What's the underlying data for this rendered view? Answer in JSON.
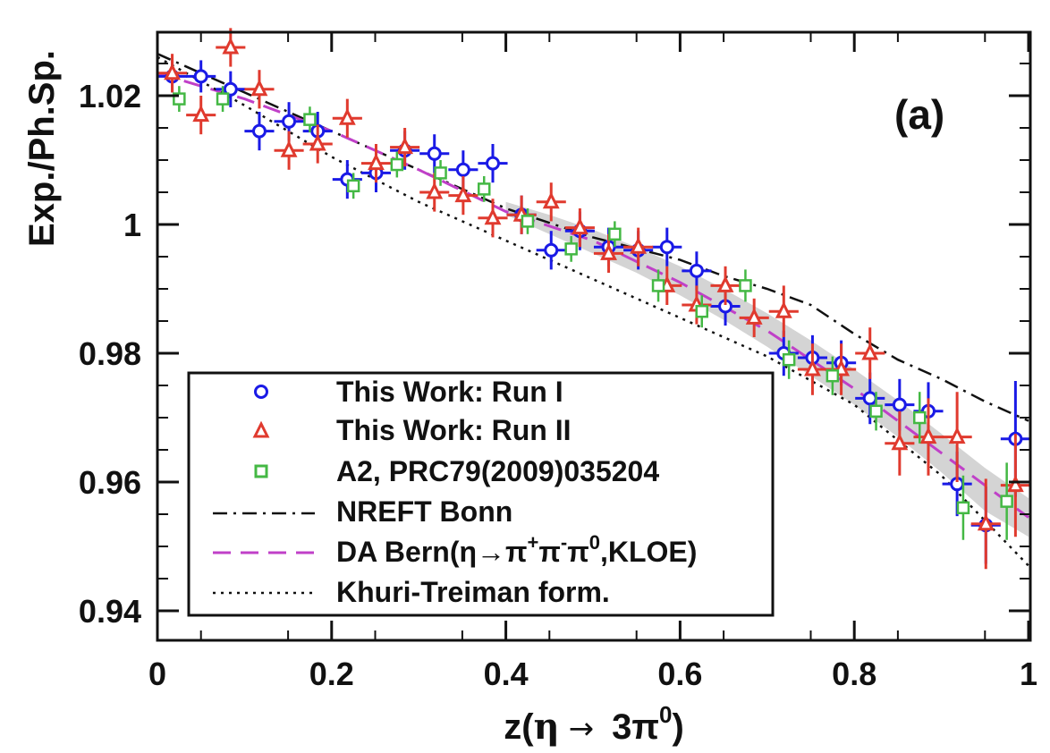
{
  "chart_data": {
    "type": "scatter",
    "panel_label": "(a)",
    "xlabel": "z(η → 3π⁰)",
    "xlabel_parts": {
      "prefix": "z(",
      "eta": "η",
      "arrow": "→",
      "three_pi": "3π",
      "sup": "0",
      "suffix": ")"
    },
    "ylabel": "Exp./Ph.Sp.",
    "xlim": [
      0,
      1
    ],
    "ylim": [
      0.935,
      1.03
    ],
    "x_ticks": [
      0,
      0.2,
      0.4,
      0.6,
      0.8,
      1
    ],
    "x_tick_labels": [
      "0",
      "0.2",
      "0.4",
      "0.6",
      "0.8",
      "1"
    ],
    "y_ticks": [
      0.94,
      0.96,
      0.98,
      1,
      1.02
    ],
    "y_tick_labels": [
      "0.94",
      "0.96",
      "0.98",
      "1",
      "1.02"
    ],
    "legend_position": "bottom-left",
    "legend": [
      {
        "label": "This Work: Run I",
        "marker": "circle",
        "color": "#1a1ae6"
      },
      {
        "label": "This Work: Run II",
        "marker": "triangle",
        "color": "#e03a2e"
      },
      {
        "label": "A2, PRC79(2009)035204",
        "marker": "square",
        "color": "#44b844"
      },
      {
        "label": "NREFT Bonn",
        "line": "dashdot",
        "color": "#111111"
      },
      {
        "label": "DA Bern(η→π⁺π⁻π⁰,KLOE)",
        "label_parts": {
          "prefix": "DA Bern(η→π",
          "s1": "+",
          "mid1": "π",
          "s2": "-",
          "mid2": "π",
          "s3": "0",
          "suffix": ",KLOE)"
        },
        "line": "dashed",
        "color": "#c040c8"
      },
      {
        "label": "Khuri-Treiman form.",
        "line": "dotted",
        "color": "#111111"
      }
    ],
    "band": {
      "color": "#cfcfcf",
      "x": [
        0.4,
        0.45,
        0.5,
        0.55,
        0.6,
        0.65,
        0.7,
        0.75,
        0.8,
        0.85,
        0.9,
        0.95,
        1.0
      ],
      "low": [
        1.0015,
        0.9985,
        0.9955,
        0.9925,
        0.989,
        0.9852,
        0.981,
        0.9765,
        0.972,
        0.967,
        0.9615,
        0.9555,
        0.9515
      ],
      "high": [
        1.0035,
        1.0015,
        0.9992,
        0.9965,
        0.9935,
        0.99,
        0.9862,
        0.982,
        0.9775,
        0.9727,
        0.9675,
        0.9622,
        0.9575
      ]
    },
    "series": [
      {
        "name": "This Work: Run I",
        "marker": "circle",
        "color": "#1a1ae6",
        "x": [
          0.017,
          0.05,
          0.084,
          0.117,
          0.151,
          0.184,
          0.218,
          0.251,
          0.284,
          0.318,
          0.351,
          0.385,
          0.418,
          0.452,
          0.485,
          0.518,
          0.552,
          0.585,
          0.619,
          0.652,
          0.719,
          0.752,
          0.785,
          0.818,
          0.852,
          0.885,
          0.918,
          0.951,
          0.985
        ],
        "y": [
          1.023,
          1.023,
          1.021,
          1.0145,
          1.016,
          1.0145,
          1.007,
          1.008,
          1.0115,
          1.011,
          1.0085,
          1.0095,
          1.0015,
          0.996,
          0.999,
          0.9965,
          0.996,
          0.9965,
          0.9928,
          0.9873,
          0.98,
          0.9793,
          0.9785,
          0.973,
          0.972,
          0.971,
          0.9597,
          0.9533,
          0.9667
        ],
        "yerr": [
          0.0025,
          0.0025,
          0.0028,
          0.003,
          0.003,
          0.003,
          0.003,
          0.003,
          0.003,
          0.003,
          0.003,
          0.003,
          0.003,
          0.003,
          0.003,
          0.003,
          0.003,
          0.003,
          0.003,
          0.003,
          0.0035,
          0.0035,
          0.0035,
          0.004,
          0.004,
          0.0045,
          0.005,
          0.006,
          0.009
        ],
        "xerr": 0.017
      },
      {
        "name": "This Work: Run II",
        "marker": "triangle",
        "color": "#e03a2e",
        "x": [
          0.017,
          0.05,
          0.084,
          0.117,
          0.151,
          0.184,
          0.218,
          0.251,
          0.284,
          0.318,
          0.351,
          0.385,
          0.418,
          0.452,
          0.485,
          0.518,
          0.552,
          0.585,
          0.619,
          0.652,
          0.685,
          0.719,
          0.752,
          0.785,
          0.818,
          0.852,
          0.885,
          0.918,
          0.951,
          0.985
        ],
        "y": [
          1.0235,
          1.017,
          1.0275,
          1.021,
          1.0115,
          1.0125,
          1.0165,
          1.0095,
          1.012,
          1.005,
          1.0045,
          1.001,
          1.0015,
          1.0035,
          0.9995,
          0.9955,
          0.9965,
          0.9905,
          0.9875,
          0.9905,
          0.9855,
          0.9865,
          0.9775,
          0.9775,
          0.98,
          0.966,
          0.967,
          0.967,
          0.9535,
          0.9595
        ],
        "yerr": [
          0.003,
          0.003,
          0.003,
          0.003,
          0.003,
          0.003,
          0.003,
          0.003,
          0.003,
          0.003,
          0.003,
          0.003,
          0.003,
          0.003,
          0.003,
          0.003,
          0.003,
          0.003,
          0.003,
          0.003,
          0.003,
          0.004,
          0.004,
          0.004,
          0.004,
          0.005,
          0.006,
          0.007,
          0.007,
          0.008
        ],
        "xerr": 0.017
      },
      {
        "name": "A2, PRC79(2009)035204",
        "marker": "square",
        "color": "#44b844",
        "x": [
          0.025,
          0.075,
          0.175,
          0.225,
          0.275,
          0.325,
          0.375,
          0.425,
          0.475,
          0.525,
          0.575,
          0.625,
          0.675,
          0.725,
          0.775,
          0.825,
          0.875,
          0.925,
          0.975
        ],
        "y": [
          1.0195,
          1.0195,
          1.0163,
          1.006,
          1.0093,
          1.008,
          1.0055,
          1.0005,
          0.9962,
          0.9985,
          0.9905,
          0.9865,
          0.9905,
          0.979,
          0.9765,
          0.971,
          0.97,
          0.956,
          0.957
        ],
        "yerr": [
          0.002,
          0.002,
          0.002,
          0.002,
          0.002,
          0.002,
          0.002,
          0.002,
          0.002,
          0.002,
          0.0025,
          0.0025,
          0.0025,
          0.003,
          0.003,
          0.003,
          0.004,
          0.005,
          0.006
        ],
        "xerr": 0.004
      }
    ],
    "curves": [
      {
        "name": "NREFT Bonn",
        "style": "dashdot",
        "color": "#111111",
        "x": [
          0,
          0.1,
          0.2,
          0.3,
          0.4,
          0.5,
          0.6,
          0.65,
          0.7,
          0.75,
          0.8,
          0.85,
          0.9,
          0.95,
          1.0
        ],
        "y": [
          1.0265,
          1.0205,
          1.0145,
          1.0085,
          1.0025,
          0.998,
          0.9945,
          0.992,
          0.99,
          0.9875,
          0.983,
          0.979,
          0.976,
          0.9725,
          0.9695
        ]
      },
      {
        "name": "DA Bern",
        "style": "dashed",
        "color": "#c040c8",
        "x": [
          0,
          0.1,
          0.2,
          0.3,
          0.4,
          0.5,
          0.6,
          0.7,
          0.8,
          0.9,
          1.0
        ],
        "y": [
          1.0235,
          1.0195,
          1.0145,
          1.0085,
          1.002,
          0.9975,
          0.991,
          0.9835,
          0.9745,
          0.9645,
          0.9545
        ]
      },
      {
        "name": "Khuri-Treiman form.",
        "style": "dotted",
        "color": "#111111",
        "x": [
          0,
          0.1,
          0.2,
          0.3,
          0.4,
          0.5,
          0.6,
          0.7,
          0.8,
          0.9,
          1.0
        ],
        "y": [
          1.026,
          1.0185,
          1.0105,
          1.0035,
          0.9975,
          0.9915,
          0.9855,
          0.9795,
          0.972,
          0.961,
          0.947
        ]
      }
    ]
  }
}
